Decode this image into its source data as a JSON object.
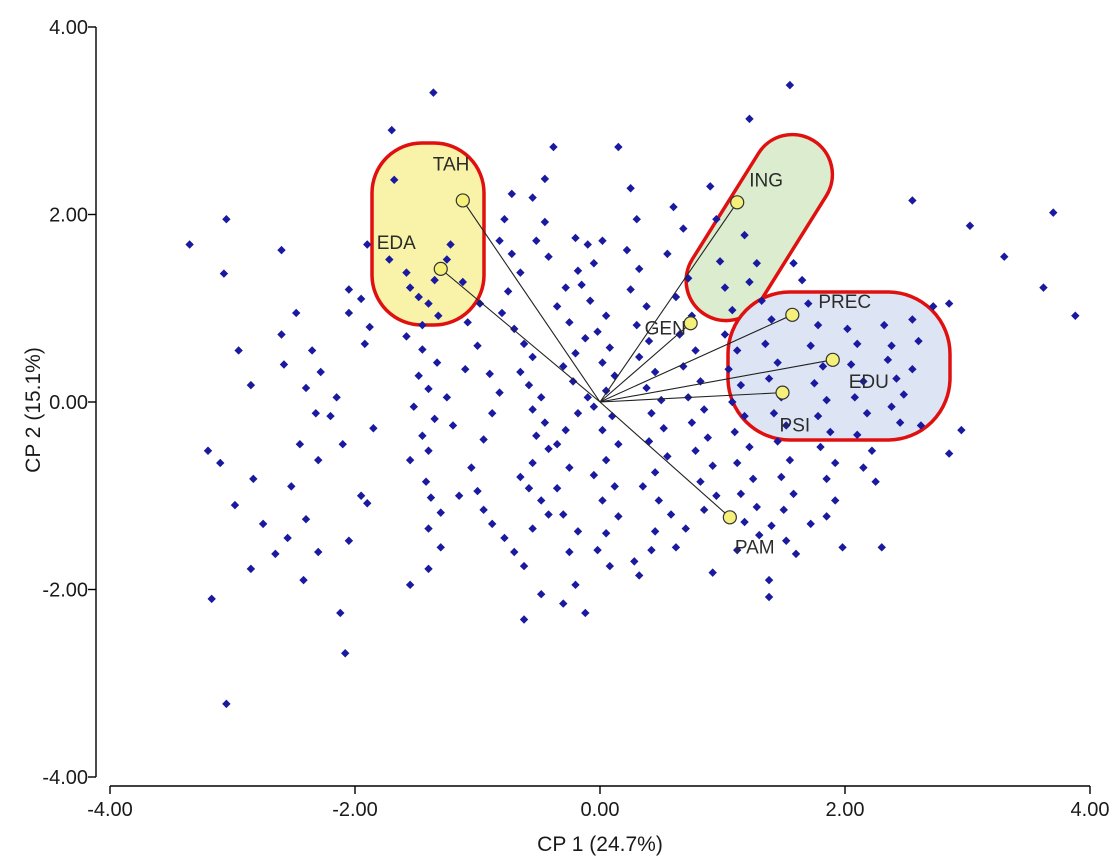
{
  "chart_data": {
    "type": "scatter",
    "title": "",
    "xlabel": "CP 1 (24.7%)",
    "ylabel": "CP 2 (15.1%)",
    "xlim": [
      -4,
      4
    ],
    "ylim": [
      -4,
      4
    ],
    "x_ticks": [
      "-4.00",
      "-2.00",
      "0.00",
      "2.00",
      "4.00"
    ],
    "y_ticks": [
      "-4.00",
      "-2.00",
      "0.00",
      "2.00",
      "4.00"
    ],
    "grid": false,
    "legend": "none",
    "colors": {
      "points": "#1a1aa0",
      "vector_end": "#f5f07a",
      "group_outline": "#e01010",
      "group_fill_left": "#f8f3a8",
      "group_fill_top": "#dcedcf",
      "group_fill_right": "#dde5f5"
    },
    "variables": [
      {
        "label": "TAH",
        "x": -1.12,
        "y": 2.15
      },
      {
        "label": "EDA",
        "x": -1.3,
        "y": 1.42
      },
      {
        "label": "ING",
        "x": 1.12,
        "y": 2.13
      },
      {
        "label": "GEN",
        "x": 0.74,
        "y": 0.84
      },
      {
        "label": "PREC",
        "x": 1.57,
        "y": 0.93
      },
      {
        "label": "EDU",
        "x": 1.9,
        "y": 0.45
      },
      {
        "label": "PSI",
        "x": 1.49,
        "y": 0.1
      },
      {
        "label": "PAM",
        "x": 1.06,
        "y": -1.23
      }
    ],
    "groups": [
      {
        "name": "TAH-EDA",
        "members": [
          "TAH",
          "EDA"
        ]
      },
      {
        "name": "ING-GEN",
        "members": [
          "ING",
          "GEN"
        ]
      },
      {
        "name": "PREC-EDU-PSI",
        "members": [
          "PREC",
          "EDU",
          "PSI"
        ]
      }
    ],
    "points": [
      [
        -3.35,
        1.68
      ],
      [
        -3.05,
        1.95
      ],
      [
        -3.07,
        1.37
      ],
      [
        -2.95,
        0.55
      ],
      [
        -2.85,
        0.18
      ],
      [
        -3.1,
        -0.65
      ],
      [
        -3.2,
        -0.52
      ],
      [
        -2.98,
        -1.1
      ],
      [
        -2.85,
        -1.78
      ],
      [
        -2.75,
        -1.3
      ],
      [
        -2.65,
        -1.62
      ],
      [
        -3.17,
        -2.1
      ],
      [
        -3.05,
        -3.22
      ],
      [
        -2.83,
        -0.82
      ],
      [
        -2.6,
        1.62
      ],
      [
        -2.48,
        0.95
      ],
      [
        -2.58,
        0.4
      ],
      [
        -2.4,
        0.15
      ],
      [
        -2.32,
        -0.12
      ],
      [
        -2.45,
        -0.45
      ],
      [
        -2.52,
        -0.9
      ],
      [
        -2.4,
        -1.25
      ],
      [
        -2.55,
        -1.45
      ],
      [
        -2.3,
        -1.6
      ],
      [
        -2.42,
        -1.9
      ],
      [
        -2.6,
        0.72
      ],
      [
        -2.35,
        0.55
      ],
      [
        -2.28,
        0.32
      ],
      [
        -2.05,
        1.2
      ],
      [
        -1.95,
        1.1
      ],
      [
        -2.05,
        0.95
      ],
      [
        -1.88,
        0.8
      ],
      [
        -1.92,
        0.62
      ],
      [
        -2.15,
        0.05
      ],
      [
        -2.2,
        -0.15
      ],
      [
        -1.85,
        -0.28
      ],
      [
        -2.1,
        -0.45
      ],
      [
        -2.3,
        -0.62
      ],
      [
        -1.95,
        -1.0
      ],
      [
        -1.9,
        -1.08
      ],
      [
        -2.05,
        -1.48
      ],
      [
        -2.12,
        -2.25
      ],
      [
        -2.08,
        -2.68
      ],
      [
        -1.7,
        2.9
      ],
      [
        -1.68,
        2.37
      ],
      [
        -1.9,
        1.68
      ],
      [
        -1.72,
        1.52
      ],
      [
        -1.58,
        1.38
      ],
      [
        -1.55,
        1.22
      ],
      [
        -1.48,
        1.12
      ],
      [
        -1.4,
        1.05
      ],
      [
        -1.35,
        1.3
      ],
      [
        -1.25,
        1.52
      ],
      [
        -1.22,
        1.68
      ],
      [
        -1.32,
        0.92
      ],
      [
        -1.45,
        0.82
      ],
      [
        -1.58,
        0.7
      ],
      [
        -1.45,
        0.56
      ],
      [
        -1.33,
        0.42
      ],
      [
        -1.48,
        0.28
      ],
      [
        -1.4,
        0.14
      ],
      [
        -1.52,
        -0.05
      ],
      [
        -1.35,
        -0.18
      ],
      [
        -1.45,
        -0.36
      ],
      [
        -1.4,
        -0.52
      ],
      [
        -1.55,
        -0.62
      ],
      [
        -1.42,
        -0.85
      ],
      [
        -1.38,
        -1.02
      ],
      [
        -1.3,
        -1.18
      ],
      [
        -1.4,
        -1.35
      ],
      [
        -1.3,
        -1.55
      ],
      [
        -1.4,
        -1.78
      ],
      [
        -1.55,
        -1.95
      ],
      [
        -1.05,
        -0.7
      ],
      [
        -1.15,
        -1.0
      ],
      [
        -1.2,
        -0.25
      ],
      [
        -1.25,
        0.05
      ],
      [
        -1.1,
        0.35
      ],
      [
        -1.0,
        0.6
      ],
      [
        -1.08,
        0.85
      ],
      [
        -0.98,
        1.05
      ],
      [
        -1.12,
        1.28
      ],
      [
        -1.36,
        3.3
      ],
      [
        -0.9,
        0.3
      ],
      [
        -0.82,
        0.1
      ],
      [
        -0.88,
        -0.12
      ],
      [
        -0.95,
        -0.4
      ],
      [
        -1.0,
        -0.95
      ],
      [
        -0.95,
        -1.15
      ],
      [
        -0.88,
        -1.3
      ],
      [
        -0.78,
        -1.45
      ],
      [
        -0.7,
        -1.6
      ],
      [
        -0.62,
        -1.75
      ],
      [
        -0.72,
        2.22
      ],
      [
        -0.78,
        1.95
      ],
      [
        -0.82,
        1.72
      ],
      [
        -0.72,
        1.58
      ],
      [
        -0.65,
        1.38
      ],
      [
        -0.75,
        1.18
      ],
      [
        -0.8,
        0.95
      ],
      [
        -0.7,
        0.78
      ],
      [
        -0.62,
        0.62
      ],
      [
        -0.55,
        0.48
      ],
      [
        -0.65,
        0.32
      ],
      [
        -0.58,
        0.18
      ],
      [
        -0.48,
        0.05
      ],
      [
        -0.55,
        -0.08
      ],
      [
        -0.45,
        -0.22
      ],
      [
        -0.52,
        -0.36
      ],
      [
        -0.42,
        -0.5
      ],
      [
        -0.55,
        -0.65
      ],
      [
        -0.65,
        -0.8
      ],
      [
        -0.58,
        -0.92
      ],
      [
        -0.48,
        -1.05
      ],
      [
        -0.42,
        -1.2
      ],
      [
        -0.55,
        -1.35
      ],
      [
        -0.62,
        -2.32
      ],
      [
        -0.48,
        -2.05
      ],
      [
        -0.3,
        -2.15
      ],
      [
        -0.2,
        -1.95
      ],
      [
        -0.12,
        -2.25
      ],
      [
        -0.25,
        -1.6
      ],
      [
        -0.18,
        -1.38
      ],
      [
        -0.3,
        -1.2
      ],
      [
        -0.35,
        -0.92
      ],
      [
        -0.25,
        -0.7
      ],
      [
        -0.35,
        -0.45
      ],
      [
        -0.28,
        -0.3
      ],
      [
        -0.18,
        -0.12
      ],
      [
        -0.1,
        0.05
      ],
      [
        -0.22,
        0.22
      ],
      [
        -0.3,
        0.38
      ],
      [
        -0.2,
        0.52
      ],
      [
        -0.12,
        0.68
      ],
      [
        -0.25,
        0.85
      ],
      [
        -0.35,
        1.02
      ],
      [
        -0.28,
        1.22
      ],
      [
        -0.18,
        1.4
      ],
      [
        -0.42,
        1.55
      ],
      [
        -0.52,
        1.72
      ],
      [
        -0.45,
        1.92
      ],
      [
        -0.55,
        2.18
      ],
      [
        -0.45,
        2.38
      ],
      [
        -0.38,
        2.72
      ],
      [
        -0.2,
        1.75
      ],
      [
        -0.1,
        1.68
      ],
      [
        0.02,
        1.72
      ],
      [
        -0.05,
        1.48
      ],
      [
        -0.15,
        1.25
      ],
      [
        -0.08,
        1.08
      ],
      [
        0.05,
        0.92
      ],
      [
        -0.02,
        0.75
      ],
      [
        0.08,
        0.58
      ],
      [
        0.02,
        0.42
      ],
      [
        0.12,
        0.28
      ],
      [
        0.05,
        0.12
      ],
      [
        -0.05,
        -0.05
      ],
      [
        0.1,
        -0.15
      ],
      [
        0.02,
        -0.3
      ],
      [
        0.15,
        -0.45
      ],
      [
        0.05,
        -0.62
      ],
      [
        -0.05,
        -0.78
      ],
      [
        0.12,
        -0.9
      ],
      [
        0.02,
        -1.05
      ],
      [
        0.15,
        -1.22
      ],
      [
        0.05,
        -1.4
      ],
      [
        -0.02,
        -1.58
      ],
      [
        0.08,
        -1.75
      ],
      [
        0.15,
        2.72
      ],
      [
        0.25,
        2.28
      ],
      [
        0.3,
        1.95
      ],
      [
        0.22,
        1.62
      ],
      [
        0.32,
        1.42
      ],
      [
        0.25,
        1.2
      ],
      [
        0.38,
        1.02
      ],
      [
        0.3,
        0.82
      ],
      [
        0.4,
        0.65
      ],
      [
        0.32,
        0.48
      ],
      [
        0.45,
        0.32
      ],
      [
        0.38,
        0.15
      ],
      [
        0.5,
        0.02
      ],
      [
        0.42,
        -0.12
      ],
      [
        0.52,
        -0.28
      ],
      [
        0.4,
        -0.42
      ],
      [
        0.55,
        -0.58
      ],
      [
        0.45,
        -0.75
      ],
      [
        0.35,
        -0.9
      ],
      [
        0.48,
        -1.05
      ],
      [
        0.58,
        -1.2
      ],
      [
        0.45,
        -1.38
      ],
      [
        0.62,
        -1.55
      ],
      [
        0.28,
        -1.7
      ],
      [
        0.42,
        -1.58
      ],
      [
        0.32,
        -1.85
      ],
      [
        0.6,
        2.08
      ],
      [
        0.68,
        1.85
      ],
      [
        0.55,
        1.58
      ],
      [
        0.72,
        1.32
      ],
      [
        0.62,
        1.12
      ],
      [
        0.75,
        0.92
      ],
      [
        0.65,
        0.72
      ],
      [
        0.78,
        0.55
      ],
      [
        0.68,
        0.38
      ],
      [
        0.82,
        0.22
      ],
      [
        0.72,
        0.05
      ],
      [
        0.85,
        -0.08
      ],
      [
        0.75,
        -0.22
      ],
      [
        0.88,
        -0.38
      ],
      [
        0.78,
        -0.52
      ],
      [
        0.92,
        -0.68
      ],
      [
        0.82,
        -0.85
      ],
      [
        0.95,
        -1.0
      ],
      [
        0.85,
        -1.15
      ],
      [
        0.7,
        -1.35
      ],
      [
        0.9,
        2.3
      ],
      [
        0.95,
        1.95
      ],
      [
        0.98,
        1.5
      ],
      [
        1.02,
        1.22
      ],
      [
        1.08,
        0.98
      ],
      [
        1.02,
        0.72
      ],
      [
        1.12,
        0.55
      ],
      [
        1.05,
        0.35
      ],
      [
        1.15,
        0.18
      ],
      [
        1.08,
        0.0
      ],
      [
        1.18,
        -0.15
      ],
      [
        1.1,
        -0.32
      ],
      [
        1.22,
        -0.48
      ],
      [
        1.12,
        -0.65
      ],
      [
        1.25,
        -0.82
      ],
      [
        1.15,
        -0.98
      ],
      [
        1.28,
        -1.12
      ],
      [
        1.18,
        -1.28
      ],
      [
        1.3,
        -1.42
      ],
      [
        1.12,
        -1.58
      ],
      [
        0.92,
        -1.82
      ],
      [
        1.22,
        3.02
      ],
      [
        1.18,
        1.78
      ],
      [
        1.28,
        1.48
      ],
      [
        1.22,
        1.28
      ],
      [
        1.32,
        1.08
      ],
      [
        1.4,
        0.88
      ],
      [
        1.35,
        0.62
      ],
      [
        1.45,
        0.42
      ],
      [
        1.38,
        0.25
      ],
      [
        1.48,
        0.05
      ],
      [
        1.42,
        -0.12
      ],
      [
        1.52,
        -0.25
      ],
      [
        1.45,
        -0.42
      ],
      [
        1.55,
        -0.62
      ],
      [
        1.48,
        -0.8
      ],
      [
        1.58,
        -0.98
      ],
      [
        1.5,
        -1.15
      ],
      [
        1.4,
        -1.32
      ],
      [
        1.52,
        -1.48
      ],
      [
        1.6,
        -1.62
      ],
      [
        1.38,
        -1.9
      ],
      [
        1.38,
        -2.08
      ],
      [
        1.55,
        3.38
      ],
      [
        1.58,
        1.48
      ],
      [
        1.65,
        1.3
      ],
      [
        1.7,
        1.05
      ],
      [
        1.78,
        0.82
      ],
      [
        1.72,
        0.6
      ],
      [
        1.82,
        0.38
      ],
      [
        1.75,
        0.2
      ],
      [
        1.85,
        0.02
      ],
      [
        1.78,
        -0.15
      ],
      [
        1.88,
        -0.32
      ],
      [
        1.8,
        -0.48
      ],
      [
        1.92,
        -0.65
      ],
      [
        1.85,
        -0.82
      ],
      [
        1.92,
        -1.05
      ],
      [
        1.72,
        -1.3
      ],
      [
        1.85,
        -1.22
      ],
      [
        1.98,
        -1.55
      ],
      [
        2.02,
        0.78
      ],
      [
        2.1,
        0.62
      ],
      [
        2.05,
        0.4
      ],
      [
        2.15,
        0.22
      ],
      [
        2.08,
        0.05
      ],
      [
        2.18,
        -0.12
      ],
      [
        2.1,
        -0.35
      ],
      [
        2.22,
        -0.52
      ],
      [
        2.15,
        -0.7
      ],
      [
        2.25,
        -0.85
      ],
      [
        2.3,
        -1.55
      ],
      [
        2.32,
        0.82
      ],
      [
        2.38,
        0.6
      ],
      [
        2.35,
        0.45
      ],
      [
        2.42,
        0.25
      ],
      [
        2.45,
        -0.22
      ],
      [
        2.38,
        -0.05
      ],
      [
        2.48,
        0.08
      ],
      [
        2.55,
        0.88
      ],
      [
        2.6,
        0.65
      ],
      [
        2.55,
        0.35
      ],
      [
        2.62,
        -0.25
      ],
      [
        2.55,
        2.15
      ],
      [
        2.72,
        1.02
      ],
      [
        2.85,
        1.05
      ],
      [
        3.02,
        1.88
      ],
      [
        3.3,
        1.55
      ],
      [
        3.62,
        1.22
      ],
      [
        3.7,
        2.02
      ],
      [
        3.88,
        0.92
      ],
      [
        2.85,
        -0.55
      ],
      [
        2.95,
        -0.3
      ]
    ]
  }
}
